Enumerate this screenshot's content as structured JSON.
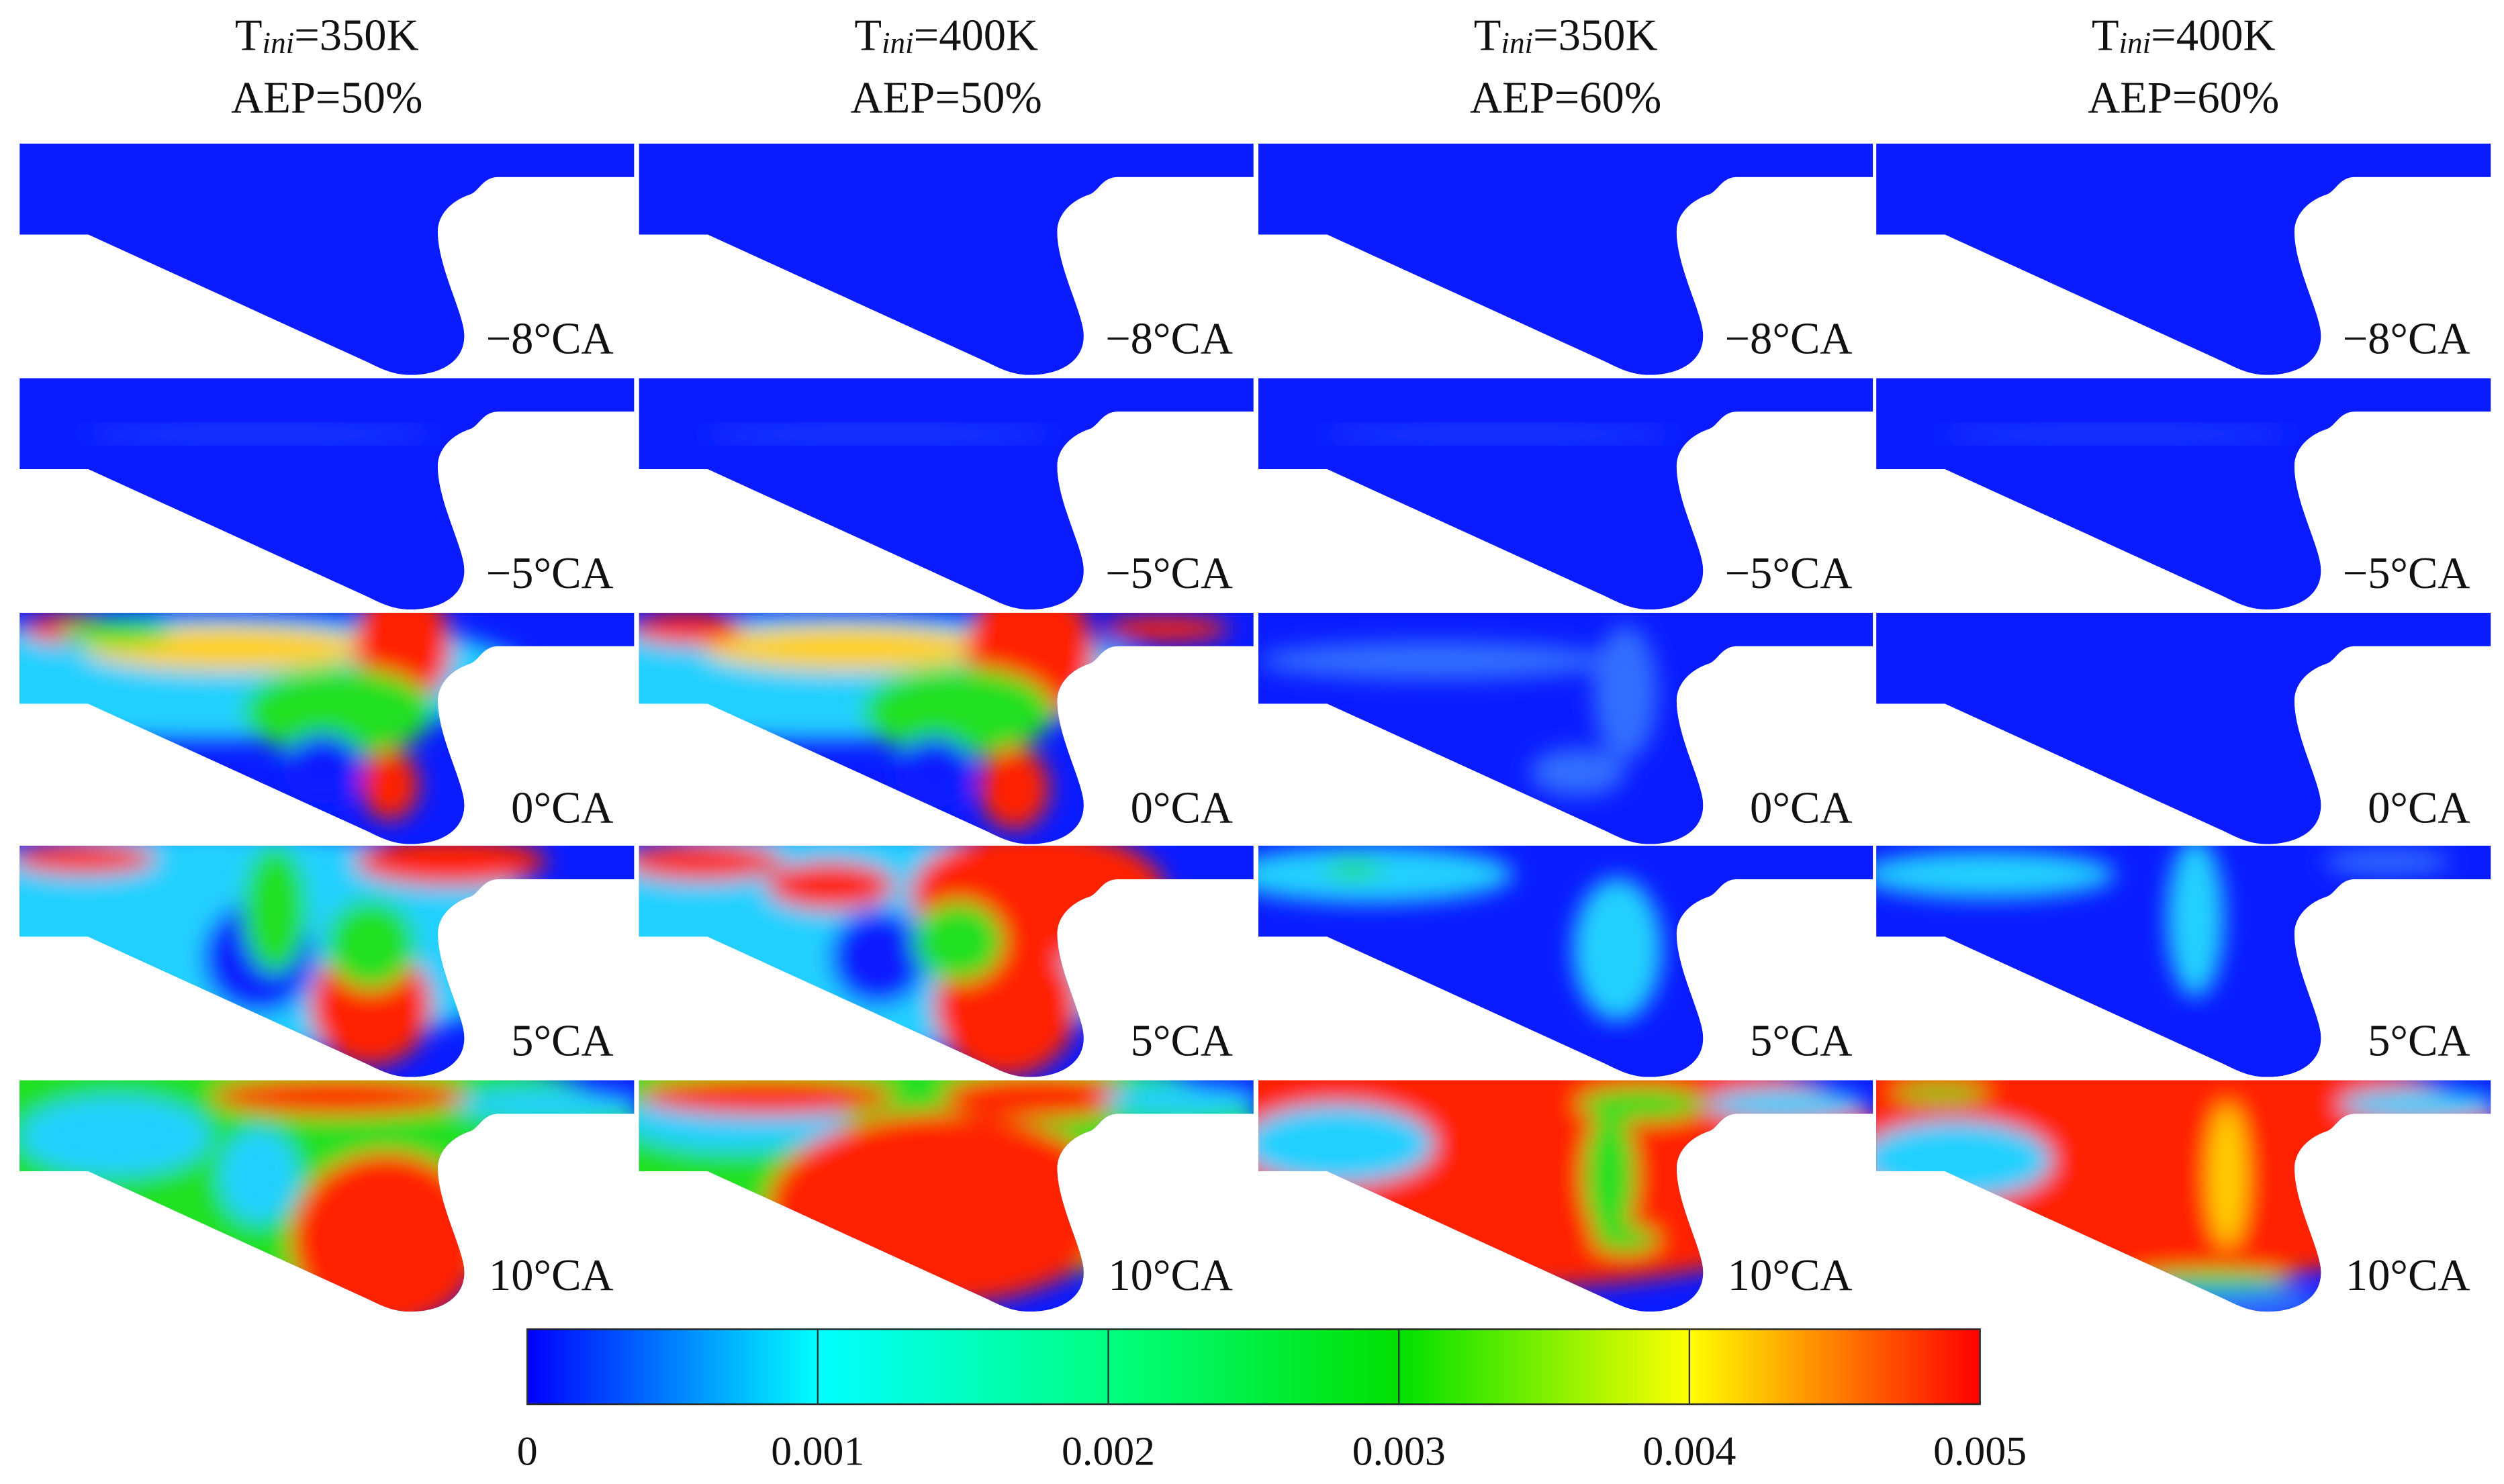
{
  "columns": [
    {
      "t_symbol": "T",
      "t_subscript": "ini",
      "t_value": "=350K",
      "aep": "AEP=50%"
    },
    {
      "t_symbol": "T",
      "t_subscript": "ini",
      "t_value": "=400K",
      "aep": "AEP=50%"
    },
    {
      "t_symbol": "T",
      "t_subscript": "ini",
      "t_value": "=350K",
      "aep": "AEP=60%"
    },
    {
      "t_symbol": "T",
      "t_subscript": "ini",
      "t_value": "=400K",
      "aep": "AEP=60%"
    }
  ],
  "rows": [
    "−8°CA",
    "−5°CA",
    "0°CA",
    "5°CA",
    "10°CA"
  ],
  "colorbar": {
    "lim": [
      0,
      0.005
    ],
    "ticks": [
      0,
      0.001,
      0.002,
      0.003,
      0.004,
      0.005
    ],
    "colors": [
      "#0000ff",
      "#00ffff",
      "#00ff80",
      "#00e000",
      "#ffff00",
      "#ff0000"
    ]
  }
}
